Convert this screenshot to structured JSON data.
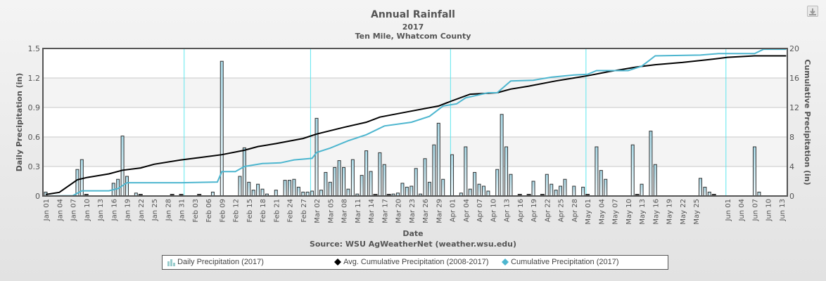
{
  "chart_data": {
    "type": "bar+line",
    "title": "Annual Rainfall",
    "subtitle": "2017",
    "location": "Ten Mile, Whatcom County",
    "xlabel": "Date",
    "ylabel_left": "Daily Precipitation (in)",
    "ylabel_right": "Cumulative Precipitation (in)",
    "source": "Source:  WSU AgWeatherNet (weather.wsu.edu)",
    "ylim_left": [
      0,
      1.5
    ],
    "yticks_left": [
      "0",
      "0.3",
      "0.6",
      "0.9",
      "1.2",
      "1.5"
    ],
    "ylim_right": [
      0,
      20
    ],
    "yticks_right": [
      "0",
      "4",
      "8",
      "12",
      "16",
      "20"
    ],
    "grid": true,
    "legend_position": "bottom",
    "x_start": "Jan 01",
    "num_days": 164,
    "xticks": [
      "Jan 01",
      "Jan 04",
      "Jan 07",
      "Jan 10",
      "Jan 13",
      "Jan 16",
      "Jan 19",
      "Jan 22",
      "Jan 25",
      "Jan 28",
      "Jan 31",
      "Feb 03",
      "Feb 06",
      "Feb 09",
      "Feb 12",
      "Feb 15",
      "Feb 18",
      "Feb 21",
      "Feb 24",
      "Feb 27",
      "Mar 02",
      "Mar 05",
      "Mar 08",
      "Mar 11",
      "Mar 14",
      "Mar 17",
      "Mar 20",
      "Mar 23",
      "Mar 26",
      "Mar 29",
      "Apr 01",
      "Apr 04",
      "Apr 07",
      "Apr 10",
      "Apr 13",
      "Apr 16",
      "Apr 19",
      "Apr 22",
      "Apr 25",
      "Apr 28",
      "May 01",
      "May 04",
      "May 07",
      "May 10",
      "May 13",
      "May 16",
      "May 19",
      "May 22",
      "May 25",
      "Jun 01",
      "Jun 04",
      "Jun 07",
      "Jun 10",
      "Jun 13"
    ],
    "month_boundaries": [
      "Feb 01",
      "Mar 01",
      "Apr 01",
      "May 01",
      "Jun 01"
    ],
    "series": [
      {
        "name": "Daily Precipitation (2017)",
        "type": "bar",
        "axis": "left",
        "color": "#b8e2ec",
        "points": [
          [
            "Jan 01",
            0.04
          ],
          [
            "Jan 08",
            0.27
          ],
          [
            "Jan 09",
            0.37
          ],
          [
            "Jan 10",
            0.01
          ],
          [
            "Jan 16",
            0.13
          ],
          [
            "Jan 17",
            0.17
          ],
          [
            "Jan 18",
            0.61
          ],
          [
            "Jan 19",
            0.2
          ],
          [
            "Jan 21",
            0.03
          ],
          [
            "Jan 22",
            0.01
          ],
          [
            "Jan 29",
            0.01
          ],
          [
            "Jan 31",
            0.01
          ],
          [
            "Feb 04",
            0.01
          ],
          [
            "Feb 07",
            0.04
          ],
          [
            "Feb 09",
            1.37
          ],
          [
            "Feb 13",
            0.2
          ],
          [
            "Feb 14",
            0.49
          ],
          [
            "Feb 15",
            0.14
          ],
          [
            "Feb 16",
            0.06
          ],
          [
            "Feb 17",
            0.12
          ],
          [
            "Feb 18",
            0.07
          ],
          [
            "Feb 19",
            0.02
          ],
          [
            "Feb 21",
            0.06
          ],
          [
            "Feb 23",
            0.16
          ],
          [
            "Feb 24",
            0.16
          ],
          [
            "Feb 25",
            0.17
          ],
          [
            "Feb 26",
            0.09
          ],
          [
            "Feb 27",
            0.04
          ],
          [
            "Feb 28",
            0.04
          ],
          [
            "Mar 01",
            0.05
          ],
          [
            "Mar 02",
            0.79
          ],
          [
            "Mar 03",
            0.06
          ],
          [
            "Mar 04",
            0.24
          ],
          [
            "Mar 05",
            0.14
          ],
          [
            "Mar 06",
            0.29
          ],
          [
            "Mar 07",
            0.36
          ],
          [
            "Mar 08",
            0.29
          ],
          [
            "Mar 09",
            0.07
          ],
          [
            "Mar 10",
            0.37
          ],
          [
            "Mar 11",
            0.02
          ],
          [
            "Mar 12",
            0.21
          ],
          [
            "Mar 13",
            0.46
          ],
          [
            "Mar 14",
            0.25
          ],
          [
            "Mar 15",
            0.01
          ],
          [
            "Mar 16",
            0.44
          ],
          [
            "Mar 17",
            0.32
          ],
          [
            "Mar 18",
            0.01
          ],
          [
            "Mar 19",
            0.02
          ],
          [
            "Mar 20",
            0.03
          ],
          [
            "Mar 21",
            0.13
          ],
          [
            "Mar 22",
            0.09
          ],
          [
            "Mar 23",
            0.1
          ],
          [
            "Mar 24",
            0.28
          ],
          [
            "Mar 25",
            0.02
          ],
          [
            "Mar 26",
            0.38
          ],
          [
            "Mar 27",
            0.14
          ],
          [
            "Mar 28",
            0.52
          ],
          [
            "Mar 29",
            0.74
          ],
          [
            "Mar 30",
            0.17
          ],
          [
            "Apr 01",
            0.42
          ],
          [
            "Apr 03",
            0.03
          ],
          [
            "Apr 04",
            0.5
          ],
          [
            "Apr 05",
            0.07
          ],
          [
            "Apr 06",
            0.24
          ],
          [
            "Apr 07",
            0.12
          ],
          [
            "Apr 08",
            0.1
          ],
          [
            "Apr 09",
            0.05
          ],
          [
            "Apr 11",
            0.27
          ],
          [
            "Apr 12",
            0.83
          ],
          [
            "Apr 13",
            0.5
          ],
          [
            "Apr 14",
            0.22
          ],
          [
            "Apr 16",
            0.01
          ],
          [
            "Apr 18",
            0.01
          ],
          [
            "Apr 19",
            0.15
          ],
          [
            "Apr 21",
            0.01
          ],
          [
            "Apr 22",
            0.22
          ],
          [
            "Apr 23",
            0.12
          ],
          [
            "Apr 24",
            0.06
          ],
          [
            "Apr 25",
            0.1
          ],
          [
            "Apr 26",
            0.17
          ],
          [
            "Apr 28",
            0.1
          ],
          [
            "Apr 30",
            0.09
          ],
          [
            "May 01",
            0.01
          ],
          [
            "May 03",
            0.5
          ],
          [
            "May 04",
            0.26
          ],
          [
            "May 05",
            0.17
          ],
          [
            "May 11",
            0.52
          ],
          [
            "May 12",
            0.01
          ],
          [
            "May 13",
            0.12
          ],
          [
            "May 15",
            0.66
          ],
          [
            "May 16",
            0.32
          ],
          [
            "May 26",
            0.18
          ],
          [
            "May 27",
            0.09
          ],
          [
            "May 28",
            0.04
          ],
          [
            "May 29",
            0.01
          ],
          [
            "Jun 07",
            0.5
          ],
          [
            "Jun 08",
            0.04
          ]
        ]
      },
      {
        "name": "Avg. Cumulative Precipitation (2008-2017)",
        "type": "line",
        "axis": "right",
        "color": "#000000",
        "points": [
          [
            "Jan 01",
            0.2
          ],
          [
            "Jan 04",
            0.5
          ],
          [
            "Jan 08",
            2.2
          ],
          [
            "Jan 10",
            2.5
          ],
          [
            "Jan 15",
            3.0
          ],
          [
            "Jan 18",
            3.5
          ],
          [
            "Jan 22",
            3.8
          ],
          [
            "Jan 25",
            4.3
          ],
          [
            "Jan 31",
            4.9
          ],
          [
            "Feb 04",
            5.2
          ],
          [
            "Feb 09",
            5.6
          ],
          [
            "Feb 14",
            6.2
          ],
          [
            "Feb 17",
            6.7
          ],
          [
            "Feb 21",
            7.1
          ],
          [
            "Feb 27",
            7.8
          ],
          [
            "Mar 02",
            8.4
          ],
          [
            "Mar 08",
            9.3
          ],
          [
            "Mar 13",
            10.0
          ],
          [
            "Mar 16",
            10.7
          ],
          [
            "Mar 22",
            11.4
          ],
          [
            "Mar 29",
            12.2
          ],
          [
            "Apr 01",
            12.9
          ],
          [
            "Apr 05",
            13.8
          ],
          [
            "Apr 11",
            14.0
          ],
          [
            "Apr 14",
            14.5
          ],
          [
            "Apr 18",
            14.9
          ],
          [
            "Apr 24",
            15.6
          ],
          [
            "Apr 28",
            16.0
          ],
          [
            "May 01",
            16.3
          ],
          [
            "May 06",
            16.9
          ],
          [
            "May 12",
            17.5
          ],
          [
            "May 16",
            17.8
          ],
          [
            "May 22",
            18.1
          ],
          [
            "May 28",
            18.5
          ],
          [
            "Jun 01",
            18.8
          ],
          [
            "Jun 07",
            19.0
          ],
          [
            "Jun 14",
            19.0
          ]
        ]
      },
      {
        "name": "Cumulative Precipitation (2017)",
        "type": "line",
        "axis": "right",
        "color": "#4db6cf",
        "points": [
          [
            "Jan 01",
            0.0
          ],
          [
            "Jan 07",
            0.05
          ],
          [
            "Jan 09",
            0.7
          ],
          [
            "Jan 15",
            0.7
          ],
          [
            "Jan 17",
            1.0
          ],
          [
            "Jan 19",
            1.8
          ],
          [
            "Jan 31",
            1.8
          ],
          [
            "Feb 08",
            1.9
          ],
          [
            "Feb 09",
            3.3
          ],
          [
            "Feb 12",
            3.3
          ],
          [
            "Feb 14",
            4.0
          ],
          [
            "Feb 18",
            4.4
          ],
          [
            "Feb 22",
            4.5
          ],
          [
            "Feb 25",
            4.9
          ],
          [
            "Mar 01",
            5.1
          ],
          [
            "Mar 02",
            5.9
          ],
          [
            "Mar 05",
            6.5
          ],
          [
            "Mar 09",
            7.5
          ],
          [
            "Mar 13",
            8.3
          ],
          [
            "Mar 17",
            9.5
          ],
          [
            "Mar 23",
            10.0
          ],
          [
            "Mar 27",
            10.8
          ],
          [
            "Mar 30",
            12.2
          ],
          [
            "Apr 02",
            12.5
          ],
          [
            "Apr 04",
            13.3
          ],
          [
            "Apr 09",
            14.0
          ],
          [
            "Apr 11",
            14.0
          ],
          [
            "Apr 14",
            15.6
          ],
          [
            "Apr 19",
            15.7
          ],
          [
            "Apr 23",
            16.1
          ],
          [
            "Apr 28",
            16.4
          ],
          [
            "May 01",
            16.5
          ],
          [
            "May 03",
            17.0
          ],
          [
            "May 10",
            17.0
          ],
          [
            "May 13",
            17.6
          ],
          [
            "May 16",
            19.0
          ],
          [
            "May 26",
            19.1
          ],
          [
            "May 30",
            19.3
          ],
          [
            "Jun 07",
            19.3
          ],
          [
            "Jun 09",
            19.9
          ],
          [
            "Jun 14",
            19.9
          ]
        ]
      }
    ]
  },
  "legend": {
    "items": [
      {
        "label": "Daily Precipitation (2017)",
        "color": "#b8e2ec"
      },
      {
        "label": "Avg. Cumulative Precipitation (2008-2017)",
        "color": "#000000"
      },
      {
        "label": "Cumulative Precipitation (2017)",
        "color": "#4db6cf"
      }
    ]
  },
  "toolbar": {
    "export_icon": "download-icon"
  }
}
